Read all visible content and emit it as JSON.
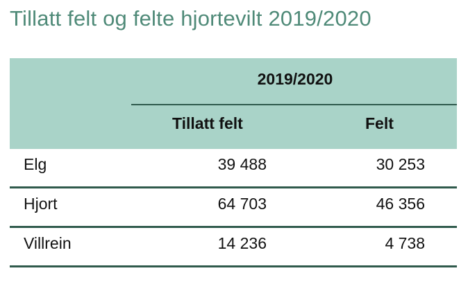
{
  "title": "Tillatt felt og felte hjortevilt 2019/2020",
  "table": {
    "period": "2019/2020",
    "columns": {
      "allowed": "Tillatt felt",
      "felled": "Felt"
    },
    "rows": [
      {
        "species": "Elg",
        "allowed": "39 488",
        "felled": "30 253"
      },
      {
        "species": "Hjort",
        "allowed": "64 703",
        "felled": "46 356"
      },
      {
        "species": "Villrein",
        "allowed": "14 236",
        "felled": "4 738"
      }
    ]
  },
  "colors": {
    "title": "#4f8a78",
    "header_background": "#a9d3c8",
    "rule": "#2f5a4c"
  }
}
